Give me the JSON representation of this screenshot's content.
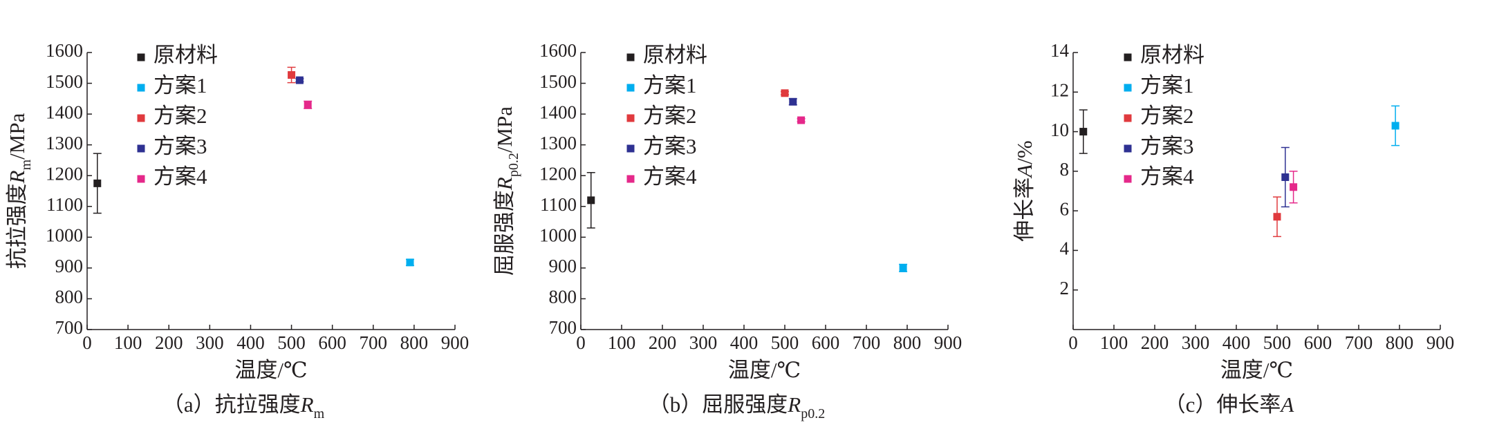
{
  "chart_data": [
    {
      "type": "scatter",
      "ylabel_runs": [
        {
          "text": "抗拉强度"
        },
        {
          "text": "R",
          "style": "italic"
        },
        {
          "text": "m",
          "style": "sub"
        },
        {
          "text": "/MPa"
        }
      ],
      "xlabel": "温度/℃",
      "caption_runs": [
        {
          "text": "（a）抗拉强度"
        },
        {
          "text": "R",
          "style": "italic"
        },
        {
          "text": "m",
          "style": "sub"
        }
      ],
      "xlim": [
        0,
        900
      ],
      "xticks": [
        0,
        100,
        200,
        300,
        400,
        500,
        600,
        700,
        800,
        900
      ],
      "ylim": [
        700,
        1600
      ],
      "yticks": [
        700,
        800,
        900,
        1000,
        1100,
        1200,
        1300,
        1400,
        1500,
        1600
      ],
      "series": [
        {
          "name": "原材料",
          "color": "#231f20",
          "x": [
            25
          ],
          "values": [
            1175
          ],
          "errors": [
            97
          ]
        },
        {
          "name": "方案1",
          "color": "#00aeef",
          "x": [
            790
          ],
          "values": [
            918
          ],
          "errors": [
            10
          ]
        },
        {
          "name": "方案2",
          "color": "#e03a3e",
          "x": [
            500
          ],
          "values": [
            1527
          ],
          "errors": [
            25
          ]
        },
        {
          "name": "方案3",
          "color": "#2e3192",
          "x": [
            520
          ],
          "values": [
            1510
          ],
          "errors": [
            5
          ]
        },
        {
          "name": "方案4",
          "color": "#e5288a",
          "x": [
            540
          ],
          "values": [
            1430
          ],
          "errors": [
            12
          ]
        }
      ]
    },
    {
      "type": "scatter",
      "ylabel_runs": [
        {
          "text": "屈服强度"
        },
        {
          "text": "R",
          "style": "italic"
        },
        {
          "text": "p0.2",
          "style": "sub"
        },
        {
          "text": "/MPa"
        }
      ],
      "xlabel": "温度/℃",
      "caption_runs": [
        {
          "text": "（b）屈服强度"
        },
        {
          "text": "R",
          "style": "italic"
        },
        {
          "text": "p0.2",
          "style": "sub"
        }
      ],
      "xlim": [
        0,
        900
      ],
      "xticks": [
        0,
        100,
        200,
        300,
        400,
        500,
        600,
        700,
        800,
        900
      ],
      "ylim": [
        700,
        1600
      ],
      "yticks": [
        700,
        800,
        900,
        1000,
        1100,
        1200,
        1300,
        1400,
        1500,
        1600
      ],
      "series": [
        {
          "name": "原材料",
          "color": "#231f20",
          "x": [
            25
          ],
          "values": [
            1120
          ],
          "errors": [
            90
          ]
        },
        {
          "name": "方案1",
          "color": "#00aeef",
          "x": [
            790
          ],
          "values": [
            900
          ],
          "errors": [
            12
          ]
        },
        {
          "name": "方案2",
          "color": "#e03a3e",
          "x": [
            500
          ],
          "values": [
            1468
          ],
          "errors": [
            5
          ]
        },
        {
          "name": "方案3",
          "color": "#2e3192",
          "x": [
            520
          ],
          "values": [
            1440
          ],
          "errors": [
            10
          ]
        },
        {
          "name": "方案4",
          "color": "#e5288a",
          "x": [
            540
          ],
          "values": [
            1380
          ],
          "errors": [
            5
          ]
        }
      ]
    },
    {
      "type": "scatter",
      "ylabel_runs": [
        {
          "text": "伸长率"
        },
        {
          "text": "A",
          "style": "italic"
        },
        {
          "text": "/%"
        }
      ],
      "xlabel": "温度/℃",
      "caption_runs": [
        {
          "text": "（c）伸长率"
        },
        {
          "text": "A",
          "style": "italic"
        }
      ],
      "xlim": [
        0,
        900
      ],
      "xticks": [
        0,
        100,
        200,
        300,
        400,
        500,
        600,
        700,
        800,
        900
      ],
      "ylim": [
        0,
        14
      ],
      "yticks": [
        2,
        4,
        6,
        8,
        10,
        12,
        14
      ],
      "series": [
        {
          "name": "原材料",
          "color": "#231f20",
          "x": [
            25
          ],
          "values": [
            10.0
          ],
          "errors": [
            1.1
          ]
        },
        {
          "name": "方案1",
          "color": "#00aeef",
          "x": [
            790
          ],
          "values": [
            10.3
          ],
          "errors": [
            1.0
          ]
        },
        {
          "name": "方案2",
          "color": "#e03a3e",
          "x": [
            500
          ],
          "values": [
            5.7
          ],
          "errors": [
            1.0
          ]
        },
        {
          "name": "方案3",
          "color": "#2e3192",
          "x": [
            520
          ],
          "values": [
            7.7
          ],
          "errors": [
            1.5
          ]
        },
        {
          "name": "方案4",
          "color": "#e5288a",
          "x": [
            540
          ],
          "values": [
            7.2
          ],
          "errors": [
            0.8
          ]
        }
      ]
    }
  ]
}
